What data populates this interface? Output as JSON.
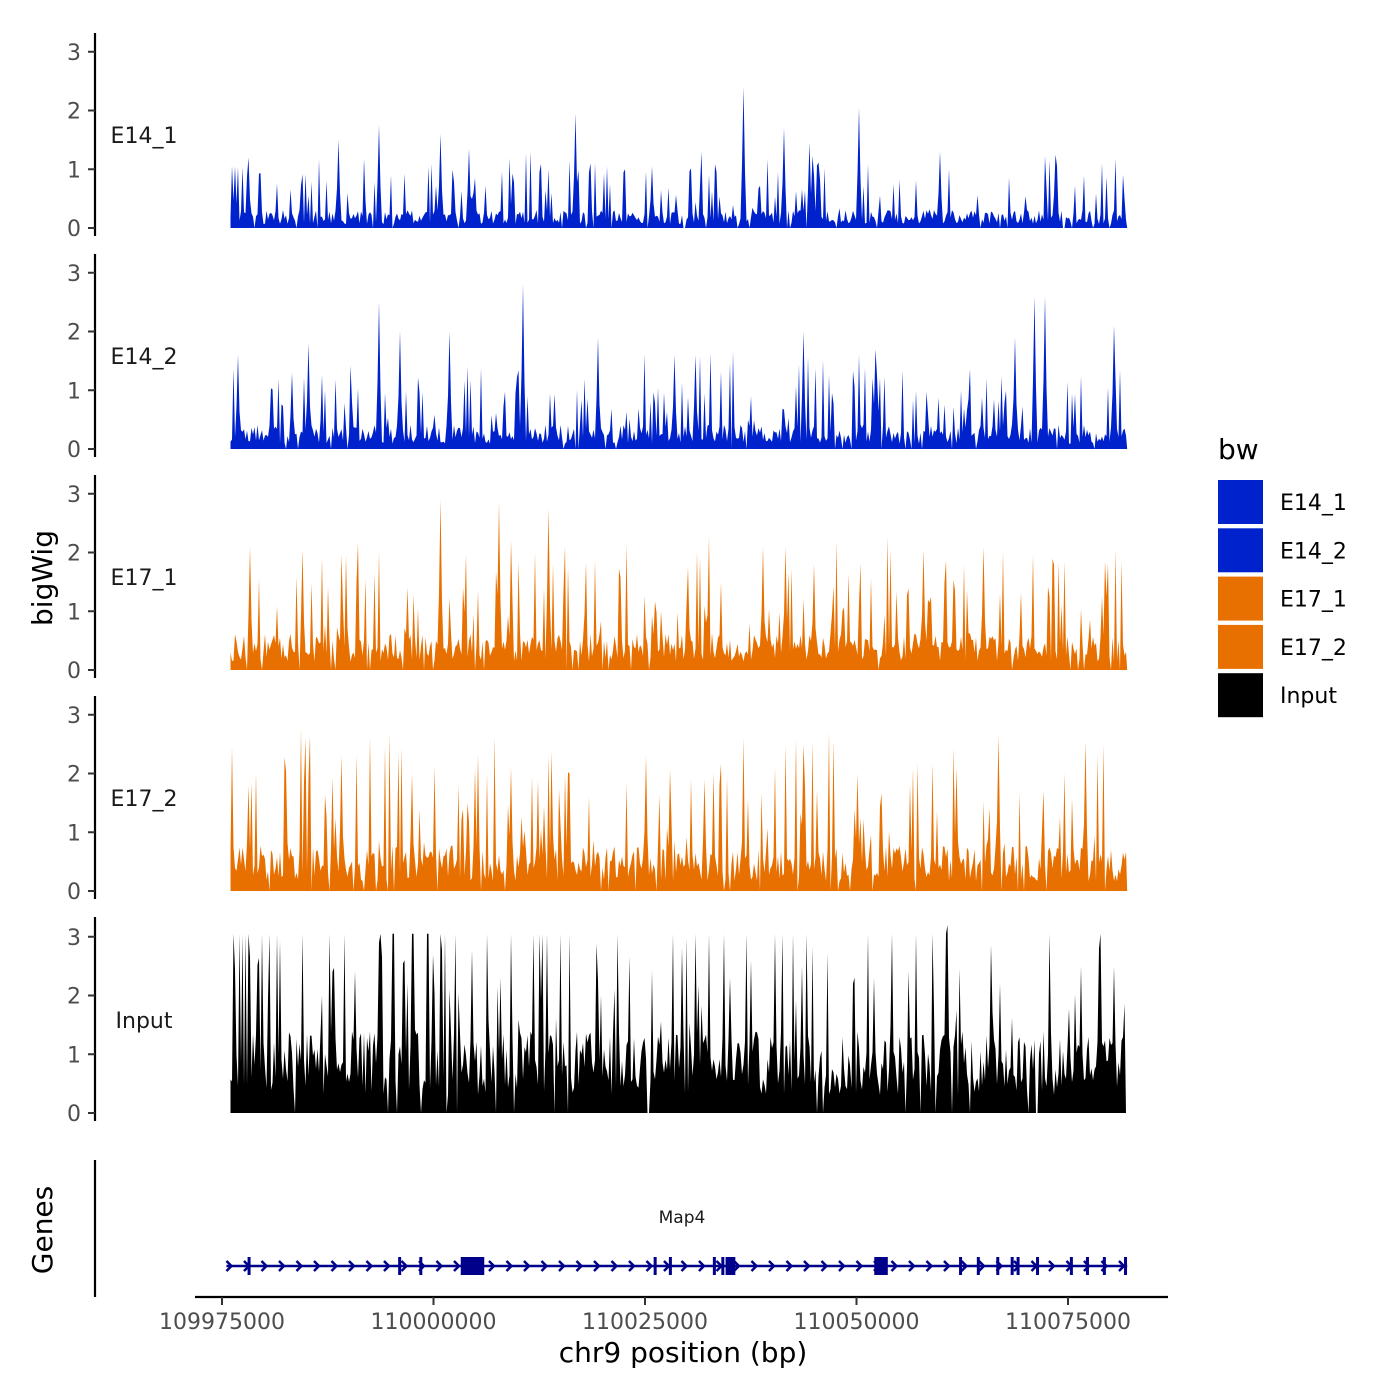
{
  "chart_data": {
    "type": "area",
    "description_of_type": "stacked coverage tracks (bigWig signal) with gene model track",
    "y_axis_title": "bigWig",
    "genes_axis_title": "Genes",
    "x_axis_title": "chr9 position (bp)",
    "xlim": [
      109976000,
      110082000
    ],
    "x_ticks": [
      109975000,
      110000000,
      110025000,
      110050000,
      110075000
    ],
    "x_tick_labels": [
      "109975000",
      "110000000",
      "110025000",
      "110050000",
      "110075000"
    ],
    "ylim": [
      0,
      3.3
    ],
    "y_ticks": [
      0,
      1,
      2,
      3
    ],
    "y_tick_labels": [
      "0",
      "1",
      "2",
      "3"
    ],
    "tracks": [
      {
        "name": "E14_1",
        "color": "#0022cc",
        "mean_level": 0.22,
        "peaks": [
          [
            109976500,
            1.05
          ],
          [
            109978200,
            1.2
          ],
          [
            109988800,
            1.5
          ],
          [
            109993500,
            1.75
          ],
          [
            110000800,
            1.6
          ],
          [
            110004200,
            1.35
          ],
          [
            110016800,
            1.95
          ],
          [
            110025800,
            1.05
          ],
          [
            110036600,
            2.4
          ],
          [
            110041500,
            1.7
          ],
          [
            110044500,
            1.45
          ],
          [
            110050300,
            2.05
          ],
          [
            110059800,
            1.3
          ],
          [
            110073500,
            1.25
          ]
        ]
      },
      {
        "name": "E14_2",
        "color": "#0022cc",
        "mean_level": 0.3,
        "peaks": [
          [
            109976800,
            1.6
          ],
          [
            109983300,
            1.3
          ],
          [
            109985200,
            1.8
          ],
          [
            109993500,
            2.5
          ],
          [
            109996000,
            2.0
          ],
          [
            110001800,
            2.0
          ],
          [
            110010600,
            2.8
          ],
          [
            110019500,
            1.9
          ],
          [
            110028500,
            1.6
          ],
          [
            110031000,
            1.6
          ],
          [
            110043700,
            2.0
          ],
          [
            110052300,
            1.7
          ],
          [
            110068800,
            1.9
          ],
          [
            110071000,
            2.6
          ],
          [
            110072300,
            2.6
          ],
          [
            110080500,
            2.1
          ]
        ]
      },
      {
        "name": "E17_1",
        "color": "#e87000",
        "mean_level": 0.45,
        "peaks": [
          [
            109978300,
            2.1
          ],
          [
            109984500,
            2.05
          ],
          [
            110000800,
            2.9
          ],
          [
            110007800,
            2.85
          ],
          [
            110013600,
            2.75
          ],
          [
            110030000,
            1.75
          ],
          [
            110039000,
            2.1
          ],
          [
            110041600,
            2.1
          ],
          [
            110045000,
            1.8
          ],
          [
            110058000,
            2.05
          ],
          [
            110065000,
            2.1
          ],
          [
            110079000,
            1.25
          ]
        ]
      },
      {
        "name": "E17_2",
        "color": "#e87000",
        "mean_level": 0.55,
        "peaks": [
          [
            109978200,
            1.8
          ],
          [
            109982500,
            2.05
          ],
          [
            109989200,
            2.3
          ],
          [
            109997500,
            2.0
          ],
          [
            110004000,
            1.5
          ],
          [
            110009200,
            2.1
          ],
          [
            110025200,
            2.3
          ],
          [
            110032000,
            1.9
          ],
          [
            110043800,
            2.5
          ],
          [
            110050200,
            2.0
          ],
          [
            110061800,
            2.1
          ],
          [
            110066800,
            2.65
          ],
          [
            110077000,
            2.55
          ]
        ]
      },
      {
        "name": "Input",
        "color": "#000000",
        "mean_level": 1.0,
        "peaks": [
          [
            109976600,
            2.45
          ],
          [
            109993500,
            2.9
          ],
          [
            109996500,
            2.6
          ],
          [
            110000000,
            2.7
          ],
          [
            110008000,
            2.3
          ],
          [
            110019500,
            2.25
          ],
          [
            110035000,
            2.3
          ],
          [
            110037500,
            2.6
          ],
          [
            110043500,
            2.5
          ],
          [
            110052000,
            2.3
          ],
          [
            110060800,
            3.2
          ],
          [
            110067000,
            2.2
          ],
          [
            110076500,
            2.5
          ],
          [
            110080500,
            2.5
          ]
        ]
      }
    ],
    "gene": {
      "name": "Map4",
      "strand": "+",
      "start": 109976000,
      "end": 110082000,
      "color": "#00008b",
      "exons": [
        109978200,
        109996000,
        109998500,
        110003400,
        110003900,
        110004600,
        110005300,
        110026200,
        110028000,
        110033200,
        110034200,
        110034700,
        110035500,
        110052400,
        110052900,
        110062300,
        110064400,
        110066700,
        110068400,
        110069100,
        110071400,
        110075400,
        110077300,
        110079300,
        110081800
      ],
      "big_exons": [
        [
          110003300,
          110006000
        ],
        [
          110034600,
          110035600
        ],
        [
          110052100,
          110053700
        ]
      ]
    },
    "legend": {
      "title": "bw",
      "position": "right",
      "entries": [
        {
          "label": "E14_1",
          "color": "#0022cc"
        },
        {
          "label": "E14_2",
          "color": "#0022cc"
        },
        {
          "label": "E17_1",
          "color": "#e87000"
        },
        {
          "label": "E17_2",
          "color": "#e87000"
        },
        {
          "label": "Input",
          "color": "#000000"
        }
      ]
    }
  }
}
